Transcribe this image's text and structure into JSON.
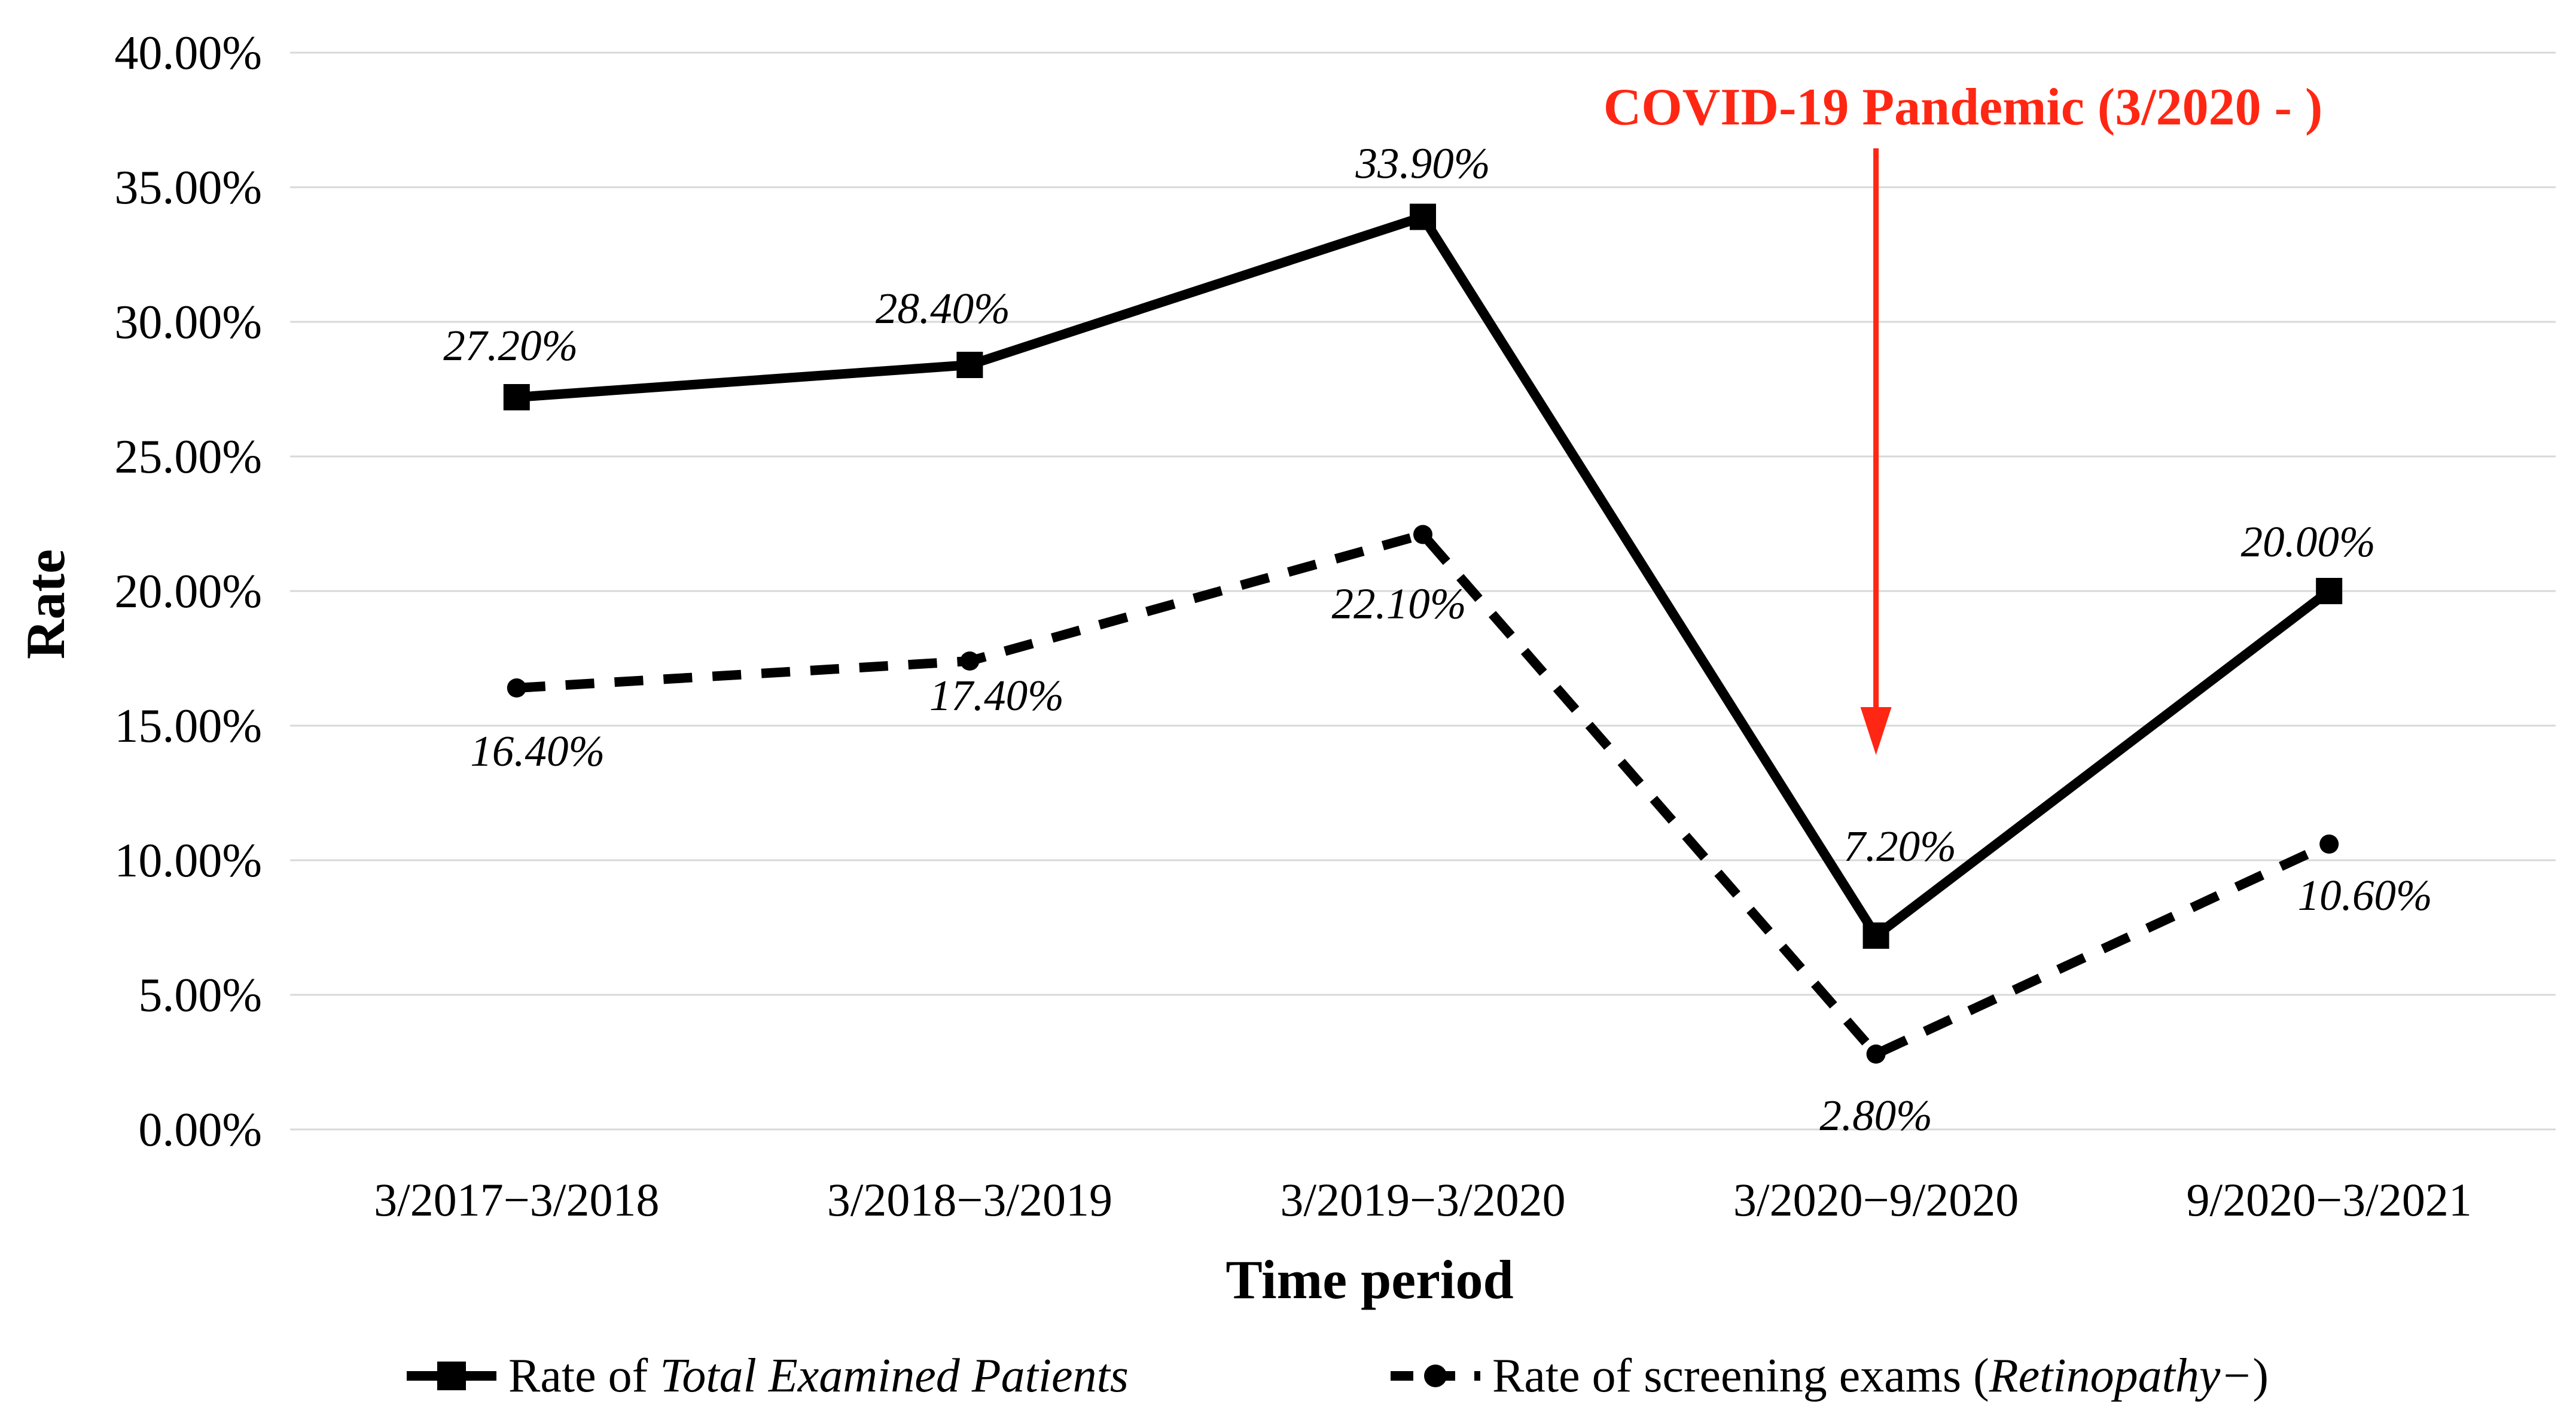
{
  "figure": {
    "background": "#ffffff",
    "text_color": "#000000",
    "grid_color": "#d8d8d8",
    "series_color": "#000000"
  },
  "legend": {
    "entries": [
      {
        "prefix": "Rate of ",
        "italic": "Total Examined Patients",
        "suffix": "",
        "marker": "solid-line-square"
      },
      {
        "prefix": "Rate of screening exams (",
        "italic": "Retinopathy−",
        "suffix": ")",
        "marker": "dashed-line-circle"
      }
    ]
  },
  "chart_data": {
    "type": "line",
    "title": "",
    "xlabel": "Time period",
    "ylabel": "Rate",
    "ylim": [
      0,
      40
    ],
    "y_tick_step": 5,
    "y_tick_labels": [
      "0.00%",
      "5.00%",
      "10.00%",
      "15.00%",
      "20.00%",
      "25.00%",
      "30.00%",
      "35.00%",
      "40.00%"
    ],
    "grid": true,
    "legend_position": "bottom",
    "categories": [
      "3/2017−3/2018",
      "3/2018−3/2019",
      "3/2019−3/2020",
      "3/2020−9/2020",
      "9/2020−3/2021"
    ],
    "series": [
      {
        "name": "Rate of Total Examined Patients",
        "line_style": "solid",
        "marker": "square",
        "color": "#000000",
        "values": [
          27.2,
          28.4,
          33.9,
          7.2,
          20.0
        ],
        "labels": [
          "27.20%",
          "28.40%",
          "33.90%",
          "7.20%",
          "20.00%"
        ]
      },
      {
        "name": "Rate of screening exams (Retinopathy−)",
        "line_style": "dashed",
        "marker": "circle",
        "color": "#000000",
        "values": [
          16.4,
          17.4,
          22.1,
          2.8,
          10.6
        ],
        "labels": [
          "16.40%",
          "17.40%",
          "22.10%",
          "2.80%",
          "10.60%"
        ]
      }
    ],
    "annotation": {
      "text": "COVID-19 Pandemic (3/2020 - )",
      "color": "#ff2713",
      "target_category": "3/2020−9/2020"
    }
  }
}
